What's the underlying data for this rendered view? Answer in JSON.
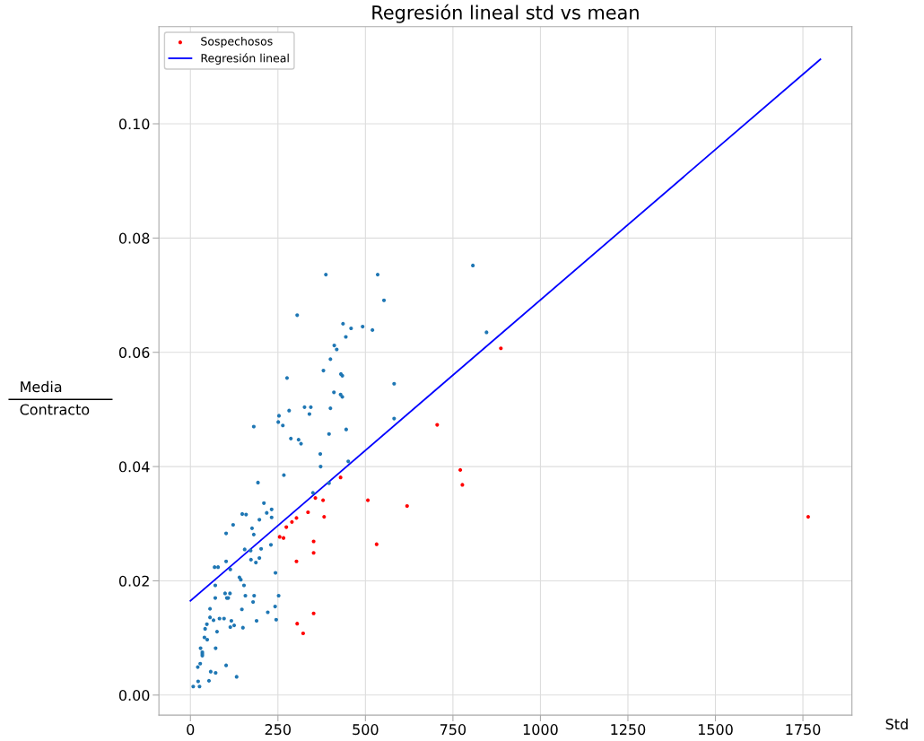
{
  "chart_data": {
    "type": "scatter",
    "title": "Regresión lineal std vs mean",
    "xlabel": "Std",
    "ylabel": "Media\nContracto",
    "xlim": [
      -90,
      1890
    ],
    "ylim": [
      -0.0035,
      0.117
    ],
    "xticks": [
      0,
      250,
      500,
      750,
      1000,
      1250,
      1500,
      1750
    ],
    "yticks": [
      {
        "value": 0,
        "label": "0.00"
      },
      {
        "value": 0.02,
        "label": "0.02"
      },
      {
        "value": 0.04,
        "label": "0.04"
      },
      {
        "value": 0.06,
        "label": "0.06"
      },
      {
        "value": 0.08,
        "label": "0.08"
      },
      {
        "value": 0.1,
        "label": "0.10"
      }
    ],
    "grid": true,
    "legend": "top left",
    "series": [
      {
        "marker": "circle",
        "color": "#1f77b4",
        "x": [
          387,
          535,
          553,
          305,
          436,
          459,
          492,
          520,
          444,
          411,
          418,
          400,
          380,
          430,
          434,
          276,
          582,
          410,
          429,
          434,
          326,
          344,
          400,
          282,
          340,
          253,
          251,
          264,
          181,
          582,
          445,
          396,
          287,
          309,
          316,
          371,
          372,
          451,
          807,
          846,
          267,
          193,
          210,
          148,
          159,
          218,
          232,
          232,
          197,
          122,
          176,
          181,
          102,
          230,
          155,
          172,
          202,
          173,
          187,
          197,
          102,
          69,
          79,
          114,
          243,
          140,
          144,
          71,
          153,
          99,
          113,
          104,
          108,
          157,
          182,
          252,
          71,
          179,
          56,
          242,
          147,
          221,
          56,
          66,
          83,
          96,
          117,
          245,
          189,
          47,
          114,
          125,
          150,
          76,
          42,
          40,
          48,
          29,
          72,
          34,
          34,
          34,
          28,
          21,
          102,
          58,
          72,
          132,
          22,
          53,
          8,
          26,
          350,
          396
        ],
        "values": [
          0.0736,
          0.0736,
          0.0691,
          0.0665,
          0.065,
          0.0642,
          0.0645,
          0.0639,
          0.0627,
          0.0612,
          0.0605,
          0.0588,
          0.0568,
          0.0562,
          0.0559,
          0.0555,
          0.0545,
          0.053,
          0.0526,
          0.0522,
          0.0504,
          0.0504,
          0.0502,
          0.0498,
          0.0492,
          0.0489,
          0.0478,
          0.0472,
          0.047,
          0.0484,
          0.0465,
          0.0457,
          0.0449,
          0.0447,
          0.044,
          0.0422,
          0.04,
          0.0409,
          0.0752,
          0.0635,
          0.0385,
          0.0372,
          0.0336,
          0.0317,
          0.0316,
          0.0319,
          0.0325,
          0.0311,
          0.0307,
          0.0298,
          0.0292,
          0.0281,
          0.0283,
          0.0263,
          0.0255,
          0.0253,
          0.0256,
          0.0237,
          0.0232,
          0.024,
          0.0234,
          0.0224,
          0.0224,
          0.022,
          0.0214,
          0.0206,
          0.0202,
          0.0192,
          0.0192,
          0.0178,
          0.0178,
          0.017,
          0.017,
          0.0174,
          0.0174,
          0.0174,
          0.017,
          0.0163,
          0.0151,
          0.0155,
          0.015,
          0.0145,
          0.0136,
          0.0131,
          0.0134,
          0.0134,
          0.013,
          0.0132,
          0.013,
          0.0124,
          0.0119,
          0.0122,
          0.0118,
          0.0111,
          0.0116,
          0.0101,
          0.0097,
          0.0082,
          0.0082,
          0.0075,
          0.0072,
          0.0069,
          0.0055,
          0.0049,
          0.0052,
          0.0041,
          0.0039,
          0.0032,
          0.0024,
          0.0025,
          0.0015,
          0.0015,
          0.0354,
          0.0371
        ]
      },
      {
        "marker": "circle",
        "name": "Sospechosos",
        "color": "#ff0000",
        "x": [
          887,
          705,
          771,
          777,
          507,
          619,
          532,
          1765,
          357,
          379,
          429,
          336,
          382,
          303,
          290,
          274,
          255,
          266,
          352,
          352,
          303,
          352,
          305,
          322
        ],
        "values": [
          0.0607,
          0.0473,
          0.0394,
          0.0368,
          0.0341,
          0.0331,
          0.0264,
          0.0312,
          0.0345,
          0.0341,
          0.0381,
          0.032,
          0.0312,
          0.031,
          0.0303,
          0.0294,
          0.0277,
          0.0275,
          0.0269,
          0.0249,
          0.0234,
          0.0143,
          0.0125,
          0.0108
        ]
      },
      {
        "type": "line",
        "name": "Regresión lineal",
        "color": "#0000ff",
        "x": [
          0,
          1800
        ],
        "values": [
          0.0165,
          0.1113
        ]
      }
    ]
  }
}
